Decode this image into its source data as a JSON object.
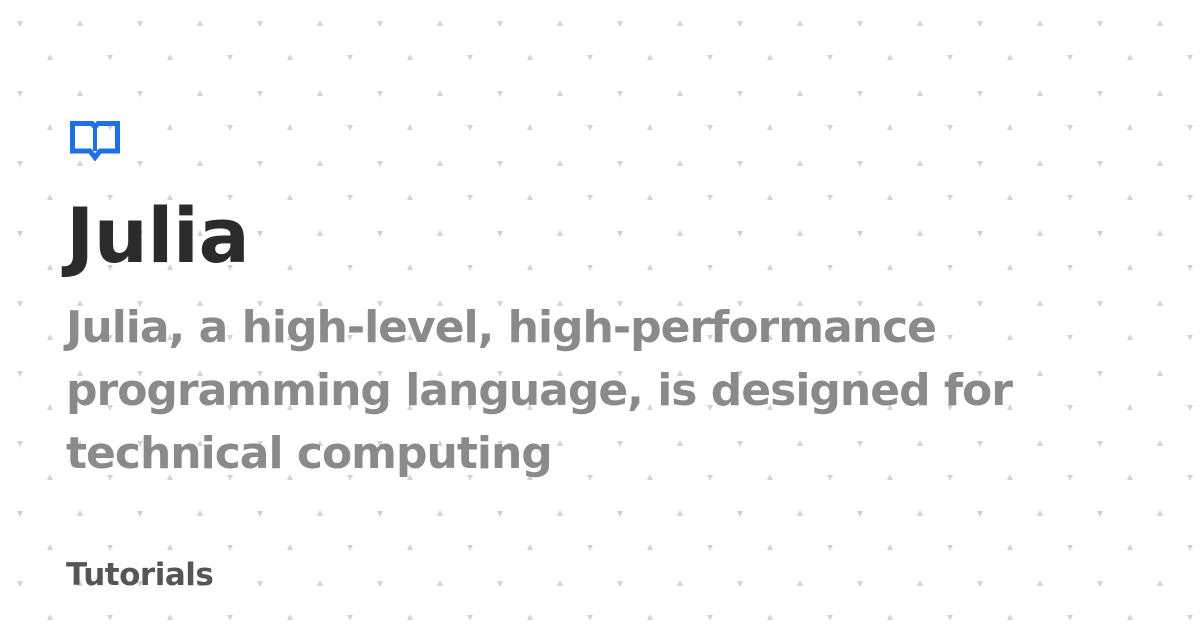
{
  "colors": {
    "background": "#ffffff",
    "pattern": "#d3d3d3",
    "accent": "#1f6fe5",
    "title": "#2b2b2b",
    "description": "#8a8a8a",
    "category": "#555555"
  },
  "logo": {
    "icon": "open-book-icon"
  },
  "title": "Julia",
  "description": "Julia, a high-level, high-performance programming language, is designed for technical computing",
  "category": "Tutorials"
}
